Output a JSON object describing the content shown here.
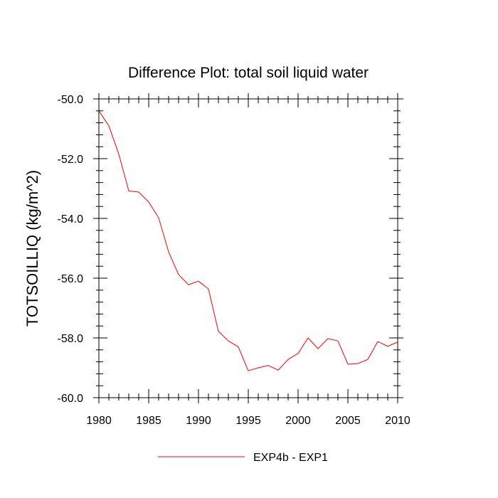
{
  "chart_data": {
    "type": "line",
    "title": "Difference Plot: total soil liquid water",
    "xlabel": "",
    "ylabel": "TOTSOILLIQ  (kg/m^2)",
    "xlim": [
      1980,
      2010
    ],
    "ylim": [
      -60,
      -50
    ],
    "x_ticks": [
      1980,
      1985,
      1990,
      1995,
      2000,
      2005,
      2010
    ],
    "x_tick_labels": [
      "1980",
      "1985",
      "1990",
      "1995",
      "2000",
      "2005",
      "2010"
    ],
    "y_ticks": [
      -50,
      -52,
      -54,
      -56,
      -58,
      -60
    ],
    "y_tick_labels": [
      "-50.0",
      "-52.0",
      "-54.0",
      "-56.0",
      "-58.0",
      "-60.0"
    ],
    "grid": false,
    "legend_position": "bottom-center",
    "series": [
      {
        "name": "EXP4b - EXP1",
        "color": "#ff0000",
        "x": [
          1980,
          1981,
          1982,
          1983,
          1984,
          1985,
          1986,
          1987,
          1988,
          1989,
          1990,
          1991,
          1992,
          1993,
          1994,
          1995,
          1996,
          1997,
          1998,
          1999,
          2000,
          2001,
          2002,
          2003,
          2004,
          2005,
          2006,
          2007,
          2008,
          2009,
          2010
        ],
        "values": [
          -50.4,
          -50.9,
          -51.85,
          -53.08,
          -53.12,
          -53.45,
          -53.98,
          -55.12,
          -55.88,
          -56.22,
          -56.1,
          -56.36,
          -57.78,
          -58.1,
          -58.3,
          -59.1,
          -59.0,
          -58.92,
          -59.08,
          -58.72,
          -58.52,
          -58.0,
          -58.36,
          -58.02,
          -58.1,
          -58.88,
          -58.86,
          -58.72,
          -58.12,
          -58.28,
          -58.14
        ]
      }
    ]
  }
}
